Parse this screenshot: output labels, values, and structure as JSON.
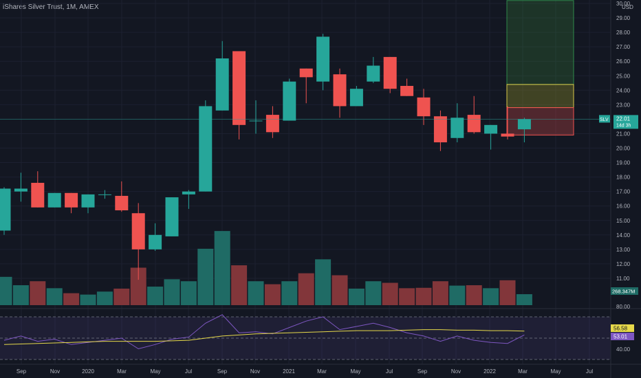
{
  "header": {
    "title": "iShares Silver Trust, 1M, AMEX"
  },
  "price_axis": {
    "currency": "USD",
    "ticks": [
      "30.00",
      "29.00",
      "28.00",
      "27.00",
      "26.00",
      "25.00",
      "24.00",
      "23.00",
      "22.00",
      "21.00",
      "20.00",
      "19.00",
      "18.00",
      "17.00",
      "16.00",
      "15.00",
      "14.00",
      "13.00",
      "12.00",
      "11.00"
    ],
    "symbol_tag": "SLV",
    "last_price": "22.01",
    "countdown": "14d 3h",
    "volume_label": "268.347M"
  },
  "rsi_axis": {
    "ticks": [
      "80.00",
      "40.00"
    ],
    "ma_value": "56.58",
    "rsi_value": "53.01"
  },
  "time_axis": {
    "labels": [
      "Sep",
      "Nov",
      "2020",
      "Mar",
      "May",
      "Jul",
      "Sep",
      "Nov",
      "2021",
      "Mar",
      "May",
      "Jul",
      "Sep",
      "Nov",
      "2022",
      "Mar",
      "May",
      "Jul"
    ]
  },
  "colors": {
    "up": "#26a69a",
    "down": "#ef5350",
    "up_volume": "#1f6b65",
    "down_volume": "#82363a",
    "rsi_line": "#7e57c2",
    "rsi_ma": "#e6d94a",
    "price_line": "#26a69a",
    "background": "#131722"
  },
  "chart_data": {
    "type": "candlestick",
    "price_range": [
      11,
      30
    ],
    "rsi_range": [
      30,
      85
    ],
    "rsi_levels": [
      70,
      50,
      30
    ],
    "bars": [
      {
        "t": "2019-07",
        "o": 14.3,
        "h": 17.3,
        "l": 14.0,
        "c": 17.2,
        "v": 1.42
      },
      {
        "t": "2019-08",
        "o": 17.0,
        "h": 18.3,
        "l": 16.3,
        "c": 17.2,
        "v": 1.0
      },
      {
        "t": "2019-09",
        "o": 17.6,
        "h": 18.4,
        "l": 15.9,
        "c": 15.9,
        "v": 1.2
      },
      {
        "t": "2019-10",
        "o": 15.9,
        "h": 16.9,
        "l": 15.9,
        "c": 16.9,
        "v": 0.85
      },
      {
        "t": "2019-11",
        "o": 16.9,
        "h": 16.9,
        "l": 15.5,
        "c": 15.9,
        "v": 0.6
      },
      {
        "t": "2019-12",
        "o": 15.9,
        "h": 16.8,
        "l": 15.5,
        "c": 16.8,
        "v": 0.53
      },
      {
        "t": "2020-01",
        "o": 16.8,
        "h": 17.1,
        "l": 16.5,
        "c": 16.8,
        "v": 0.68
      },
      {
        "t": "2020-02",
        "o": 16.7,
        "h": 17.7,
        "l": 15.6,
        "c": 15.7,
        "v": 0.83
      },
      {
        "t": "2020-03",
        "o": 15.5,
        "h": 16.2,
        "l": 10.9,
        "c": 13.0,
        "v": 1.88
      },
      {
        "t": "2020-04",
        "o": 13.0,
        "h": 14.8,
        "l": 12.9,
        "c": 14.0,
        "v": 0.93
      },
      {
        "t": "2020-05",
        "o": 13.9,
        "h": 16.6,
        "l": 13.9,
        "c": 16.6,
        "v": 1.3
      },
      {
        "t": "2020-06",
        "o": 16.8,
        "h": 17.1,
        "l": 15.8,
        "c": 17.0,
        "v": 1.2
      },
      {
        "t": "2020-07",
        "o": 17.0,
        "h": 23.3,
        "l": 17.0,
        "c": 22.9,
        "v": 2.83
      },
      {
        "t": "2020-08",
        "o": 22.6,
        "h": 27.4,
        "l": 22.6,
        "c": 26.2,
        "v": 3.72
      },
      {
        "t": "2020-09",
        "o": 26.7,
        "h": 26.7,
        "l": 20.6,
        "c": 21.6,
        "v": 2.0
      },
      {
        "t": "2020-10",
        "o": 21.9,
        "h": 23.3,
        "l": 21.0,
        "c": 21.9,
        "v": 1.2
      },
      {
        "t": "2020-11",
        "o": 22.3,
        "h": 22.9,
        "l": 20.7,
        "c": 21.1,
        "v": 1.05
      },
      {
        "t": "2020-12",
        "o": 21.9,
        "h": 24.8,
        "l": 21.9,
        "c": 24.6,
        "v": 1.2
      },
      {
        "t": "2021-01",
        "o": 25.5,
        "h": 25.5,
        "l": 23.1,
        "c": 24.9,
        "v": 1.6
      },
      {
        "t": "2021-02",
        "o": 24.6,
        "h": 27.9,
        "l": 24.0,
        "c": 27.7,
        "v": 2.3
      },
      {
        "t": "2021-03",
        "o": 25.1,
        "h": 25.5,
        "l": 22.1,
        "c": 22.9,
        "v": 1.5
      },
      {
        "t": "2021-04",
        "o": 22.9,
        "h": 24.3,
        "l": 22.9,
        "c": 24.1,
        "v": 0.83
      },
      {
        "t": "2021-05",
        "o": 24.6,
        "h": 26.3,
        "l": 24.5,
        "c": 25.7,
        "v": 1.2
      },
      {
        "t": "2021-06",
        "o": 26.3,
        "h": 26.3,
        "l": 23.8,
        "c": 24.1,
        "v": 1.12
      },
      {
        "t": "2021-07",
        "o": 24.3,
        "h": 24.8,
        "l": 23.6,
        "c": 23.6,
        "v": 0.85
      },
      {
        "t": "2021-08",
        "o": 23.5,
        "h": 24.1,
        "l": 21.6,
        "c": 22.2,
        "v": 0.87
      },
      {
        "t": "2021-09",
        "o": 22.2,
        "h": 22.6,
        "l": 19.8,
        "c": 20.4,
        "v": 1.2
      },
      {
        "t": "2021-10",
        "o": 20.7,
        "h": 23.1,
        "l": 20.4,
        "c": 22.1,
        "v": 0.98
      },
      {
        "t": "2021-11",
        "o": 22.3,
        "h": 23.6,
        "l": 21.0,
        "c": 21.1,
        "v": 1.0
      },
      {
        "t": "2021-12",
        "o": 21.0,
        "h": 21.6,
        "l": 19.9,
        "c": 21.6,
        "v": 0.85
      },
      {
        "t": "2022-01",
        "o": 21.0,
        "h": 22.9,
        "l": 20.6,
        "c": 20.8,
        "v": 1.25
      },
      {
        "t": "2022-02",
        "o": 21.3,
        "h": 22.1,
        "l": 20.4,
        "c": 22.0,
        "v": 0.55
      }
    ],
    "rsi": [
      48,
      52,
      47,
      49,
      44,
      46,
      48,
      50,
      40,
      44,
      49,
      51,
      64,
      72,
      55,
      56,
      54,
      60,
      66,
      70,
      58,
      61,
      64,
      60,
      55,
      52,
      47,
      52,
      48,
      46,
      45,
      53
    ],
    "rsi_ma": [
      44,
      44.5,
      45,
      45.5,
      46,
      46.5,
      47,
      47,
      47,
      47,
      47.5,
      48,
      50,
      52,
      53,
      54,
      54.5,
      55,
      55.5,
      56,
      56.5,
      57,
      57,
      57,
      57.5,
      58,
      58,
      57.5,
      57.5,
      57,
      57,
      56.58
    ],
    "position_tool": {
      "target": [
        24.4,
        30.2
      ],
      "neutral": [
        22.8,
        24.4
      ],
      "stop": [
        20.9,
        22.8
      ]
    }
  }
}
